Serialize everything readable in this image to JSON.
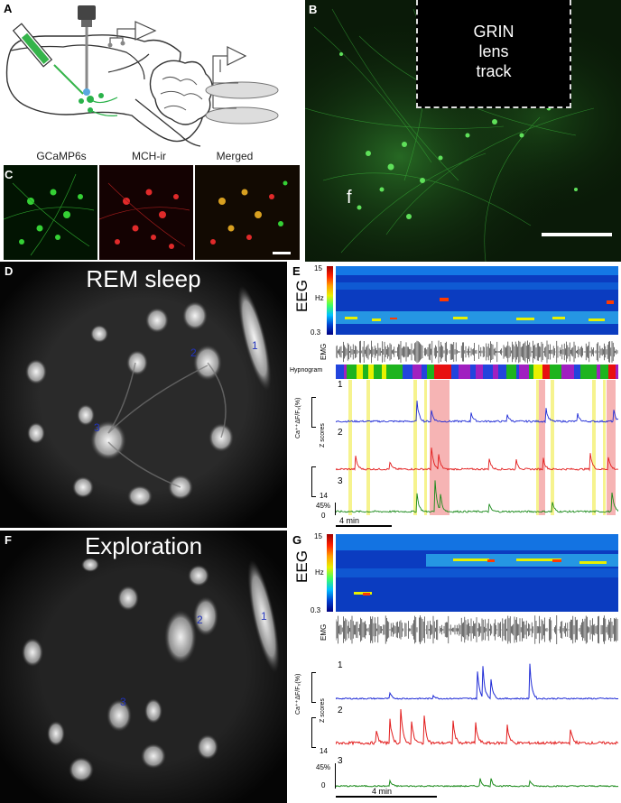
{
  "panels": {
    "A": {
      "label": "A"
    },
    "B": {
      "label": "B",
      "annotation": "GRIN\nlens\ntrack",
      "fiber_label": "f"
    },
    "C": {
      "label": "C",
      "titles": [
        "GCaMP6s",
        "MCH-ir",
        "Merged"
      ]
    },
    "D": {
      "label": "D",
      "title": "REM sleep",
      "cells": [
        "1",
        "2",
        "3"
      ]
    },
    "E": {
      "label": "E",
      "eeg_label": "EEG",
      "hz_label": "Hz",
      "hz_max": "15",
      "hz_min": "0.3",
      "emg_label": "EMG",
      "hypnogram_label": "Hypnogram",
      "ca_label": "Ca⁺⁺ΔF/F₀(%)",
      "z_label": "Z scores",
      "traces": [
        "1",
        "2",
        "3"
      ],
      "tick_14": "14",
      "tick_45": "45%",
      "tick_0": "0",
      "time_scale": "4 min"
    },
    "F": {
      "label": "F",
      "title": "Exploration",
      "cells": [
        "1",
        "2",
        "3"
      ]
    },
    "G": {
      "label": "G",
      "eeg_label": "EEG",
      "hz_label": "Hz",
      "hz_max": "15",
      "hz_min": "0.3",
      "emg_label": "EMG",
      "ca_label": "Ca⁺⁺ΔF/F₀(%)",
      "z_label": "Z scores",
      "traces": [
        "1",
        "2",
        "3"
      ],
      "tick_14": "14",
      "tick_45": "45%",
      "tick_0": "0",
      "time_scale": "4 min"
    }
  },
  "colors": {
    "trace1": "#1f2bd6",
    "trace2": "#e21b1b",
    "trace3": "#1a8a1a",
    "rem": "#f4a7a7",
    "wake": "#f4f17a",
    "fluor": "#22c022"
  }
}
